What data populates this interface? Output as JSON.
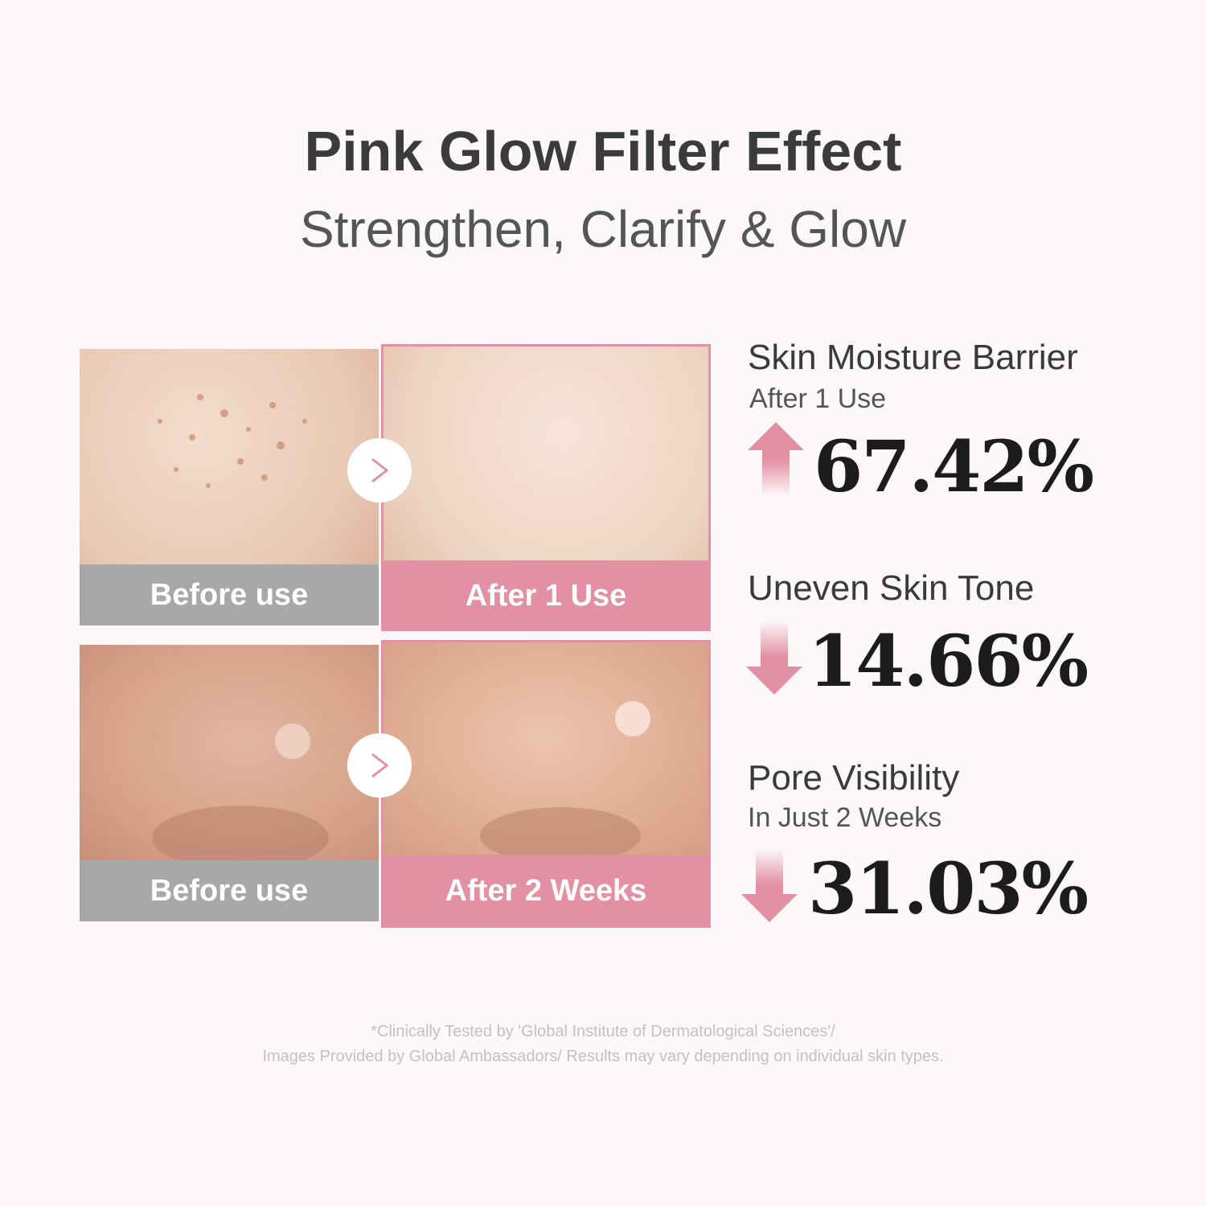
{
  "header": {
    "title": "Pink Glow Filter Effect",
    "subtitle": "Strengthen, Clarify & Glow"
  },
  "comparisons": [
    {
      "before_label": "Before use",
      "after_label": "After 1 Use"
    },
    {
      "before_label": "Before use",
      "after_label": "After 2 Weeks"
    }
  ],
  "stats": [
    {
      "heading": "Skin Moisture Barrier",
      "subheading": "After 1 Use",
      "direction": "up",
      "value": "67.42%"
    },
    {
      "heading": "Uneven Skin Tone",
      "direction": "down",
      "value": "14.66%"
    },
    {
      "heading": "Pore Visibility",
      "subheading": "In Just 2 Weeks",
      "direction": "down",
      "value": "31.03%"
    }
  ],
  "footer": {
    "line1": "*Clinically Tested by 'Global Institute of Dermatological Sciences'/",
    "line2": "Images Provided by Global Ambassadors/ Results may vary depending on individual skin types."
  },
  "colors": {
    "accent": "#e38fa4",
    "label_gray": "#a9a8a8",
    "background": "#fcf8f9"
  }
}
